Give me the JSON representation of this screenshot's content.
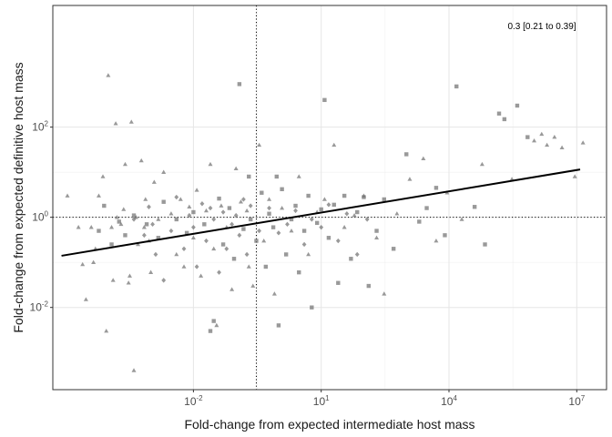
{
  "chart_data": {
    "type": "scatter",
    "title": "",
    "xlabel": "Fold-change from expected intermediate host mass",
    "ylabel": "Fold-change from expected definitive host mass",
    "x_scale": "log10",
    "y_scale": "log10",
    "xlim": [
      5e-06,
      50000000
    ],
    "ylim": [
      0.00015,
      50000
    ],
    "x_ticks": [
      {
        "value": 0.01,
        "base": "10",
        "exp": "-2"
      },
      {
        "value": 10,
        "base": "10",
        "exp": "1"
      },
      {
        "value": 10000,
        "base": "10",
        "exp": "4"
      },
      {
        "value": 10000000,
        "base": "10",
        "exp": "7"
      }
    ],
    "y_ticks": [
      {
        "value": 0.01,
        "base": "10",
        "exp": "-2"
      },
      {
        "value": 1,
        "base": "10",
        "exp": "0"
      },
      {
        "value": 100,
        "base": "10",
        "exp": "2"
      }
    ],
    "grid": true,
    "annotation": "0.3 [0.21 to 0.39]",
    "reference_lines": {
      "x": 0.3,
      "y": 1
    },
    "trend_line": {
      "x": [
        8e-06,
        12000000
      ],
      "y": [
        0.14,
        11.5
      ]
    },
    "point_color": "#6e6e6e",
    "line_color": "#000000",
    "series": [
      {
        "shape": "triangle",
        "points": [
          [
            1.1e-05,
            3
          ],
          [
            2e-05,
            0.6
          ],
          [
            2.5e-05,
            0.09
          ],
          [
            3e-05,
            0.015
          ],
          [
            4e-05,
            0.6
          ],
          [
            4.5e-05,
            0.1
          ],
          [
            5e-05,
            0.2
          ],
          [
            6e-05,
            3
          ],
          [
            7.5e-05,
            8
          ],
          [
            9e-05,
            0.003
          ],
          [
            0.0001,
            1400
          ],
          [
            0.00012,
            0.6
          ],
          [
            0.00013,
            0.04
          ],
          [
            0.00015,
            120
          ],
          [
            0.00016,
            1
          ],
          [
            0.0002,
            0.7
          ],
          [
            0.00023,
            1.5
          ],
          [
            0.00025,
            15
          ],
          [
            0.0003,
            0.035
          ],
          [
            0.00032,
            0.05
          ],
          [
            0.00035,
            130
          ],
          [
            0.0004,
            0.0004
          ],
          [
            0.00045,
            1
          ],
          [
            0.0005,
            0.25
          ],
          [
            0.0006,
            18
          ],
          [
            0.0007,
            0.6
          ],
          [
            0.00075,
            2.5
          ],
          [
            0.0009,
            0.3
          ],
          [
            0.001,
            0.06
          ],
          [
            0.0012,
            6
          ],
          [
            0.0015,
            0.9
          ],
          [
            0.002,
            10
          ],
          [
            0.003,
            1.2
          ],
          [
            0.004,
            0.15
          ],
          [
            0.005,
            2.5
          ],
          [
            0.006,
            0.08
          ],
          [
            0.008,
            1.7
          ],
          [
            0.01,
            0.35
          ],
          [
            0.012,
            4
          ],
          [
            0.015,
            0.05
          ],
          [
            0.02,
            1.4
          ],
          [
            0.025,
            15
          ],
          [
            0.03,
            0.2
          ],
          [
            0.035,
            0.004
          ],
          [
            0.045,
            1.8
          ],
          [
            0.06,
            0.6
          ],
          [
            0.08,
            0.025
          ],
          [
            0.1,
            12
          ],
          [
            0.13,
            2.2
          ],
          [
            0.18,
            1.4
          ],
          [
            0.2,
            0.08
          ],
          [
            0.25,
            0.03
          ],
          [
            0.35,
            40
          ],
          [
            0.45,
            0.3
          ],
          [
            0.6,
            2.5
          ],
          [
            0.8,
            0.02
          ],
          [
            1.2,
            1.6
          ],
          [
            2,
            0.5
          ],
          [
            3,
            8
          ],
          [
            5,
            0.15
          ],
          [
            8,
            1.3
          ],
          [
            12,
            2.5
          ],
          [
            20,
            40
          ],
          [
            35,
            0.6
          ],
          [
            60,
            1.1
          ],
          [
            100,
            3
          ],
          [
            200,
            0.35
          ],
          [
            300,
            0.02
          ],
          [
            600,
            1.2
          ],
          [
            1200,
            7
          ],
          [
            2500,
            20
          ],
          [
            5000,
            0.3
          ],
          [
            9000,
            3.5
          ],
          [
            20000,
            0.9
          ],
          [
            60000,
            15
          ],
          [
            300000,
            7
          ],
          [
            1000000,
            50
          ],
          [
            1500000,
            70
          ],
          [
            2000000,
            40
          ],
          [
            3000000,
            60
          ],
          [
            4500000,
            35
          ],
          [
            9000000,
            8
          ],
          [
            14000000,
            45
          ]
        ]
      },
      {
        "shape": "square",
        "points": [
          [
            6e-05,
            0.5
          ],
          [
            8e-05,
            1.8
          ],
          [
            0.00012,
            0.25
          ],
          [
            0.00018,
            0.8
          ],
          [
            0.00025,
            0.4
          ],
          [
            0.0004,
            1.1
          ],
          [
            0.0008,
            0.7
          ],
          [
            0.0015,
            0.35
          ],
          [
            0.002,
            2.2
          ],
          [
            0.004,
            0.9
          ],
          [
            0.007,
            0.45
          ],
          [
            0.01,
            1.3
          ],
          [
            0.018,
            0.7
          ],
          [
            0.025,
            0.003
          ],
          [
            0.03,
            0.005
          ],
          [
            0.04,
            2.6
          ],
          [
            0.05,
            0.25
          ],
          [
            0.07,
            1.6
          ],
          [
            0.09,
            0.12
          ],
          [
            0.12,
            900
          ],
          [
            0.15,
            0.55
          ],
          [
            0.2,
            8
          ],
          [
            0.22,
            0.9
          ],
          [
            0.3,
            0.3
          ],
          [
            0.4,
            3.5
          ],
          [
            0.5,
            0.08
          ],
          [
            0.6,
            1.2
          ],
          [
            0.75,
            0.6
          ],
          [
            0.9,
            8
          ],
          [
            1,
            0.004
          ],
          [
            1.2,
            4.2
          ],
          [
            1.5,
            0.15
          ],
          [
            2,
            0.9
          ],
          [
            2.5,
            1.8
          ],
          [
            3,
            0.06
          ],
          [
            4,
            0.5
          ],
          [
            5,
            3
          ],
          [
            6,
            0.01
          ],
          [
            8,
            0.75
          ],
          [
            10,
            1.5
          ],
          [
            12,
            400
          ],
          [
            15,
            0.35
          ],
          [
            20,
            1.9
          ],
          [
            25,
            0.035
          ],
          [
            35,
            3
          ],
          [
            50,
            0.12
          ],
          [
            70,
            1.3
          ],
          [
            100,
            2.8
          ],
          [
            130,
            0.03
          ],
          [
            200,
            0.5
          ],
          [
            300,
            2.5
          ],
          [
            500,
            0.2
          ],
          [
            1000,
            25
          ],
          [
            2000,
            0.8
          ],
          [
            3000,
            1.6
          ],
          [
            5000,
            4.5
          ],
          [
            8000,
            0.4
          ],
          [
            15000,
            800
          ],
          [
            40000,
            1.7
          ],
          [
            70000,
            0.25
          ],
          [
            150000,
            200
          ],
          [
            200000,
            150
          ],
          [
            400000,
            300
          ],
          [
            700000,
            60
          ]
        ]
      },
      {
        "shape": "diamond",
        "points": [
          [
            0.0004,
            0.9
          ],
          [
            0.0007,
            0.4
          ],
          [
            0.0009,
            1.7
          ],
          [
            0.0011,
            0.7
          ],
          [
            0.0013,
            0.15
          ],
          [
            0.002,
            0.04
          ],
          [
            0.003,
            0.5
          ],
          [
            0.004,
            2.8
          ],
          [
            0.006,
            0.2
          ],
          [
            0.008,
            1.1
          ],
          [
            0.01,
            0.6
          ],
          [
            0.012,
            0.08
          ],
          [
            0.016,
            2
          ],
          [
            0.02,
            0.3
          ],
          [
            0.025,
            1.6
          ],
          [
            0.03,
            0.9
          ],
          [
            0.04,
            0.06
          ],
          [
            0.05,
            1.3
          ],
          [
            0.06,
            0.2
          ],
          [
            0.08,
            0.7
          ],
          [
            0.1,
            1.1
          ],
          [
            0.12,
            0.4
          ],
          [
            0.15,
            2.5
          ],
          [
            0.18,
            0.15
          ],
          [
            0.22,
            1.8
          ],
          [
            0.35,
            0.5
          ],
          [
            0.6,
            1.6
          ],
          [
            1,
            0.45
          ],
          [
            1.6,
            0.7
          ],
          [
            2.5,
            1.4
          ],
          [
            4,
            0.25
          ],
          [
            6,
            0.9
          ],
          [
            10,
            0.6
          ],
          [
            15,
            1.9
          ],
          [
            25,
            0.3
          ],
          [
            40,
            1.2
          ],
          [
            70,
            0.15
          ],
          [
            120,
            0.9
          ]
        ]
      }
    ]
  }
}
